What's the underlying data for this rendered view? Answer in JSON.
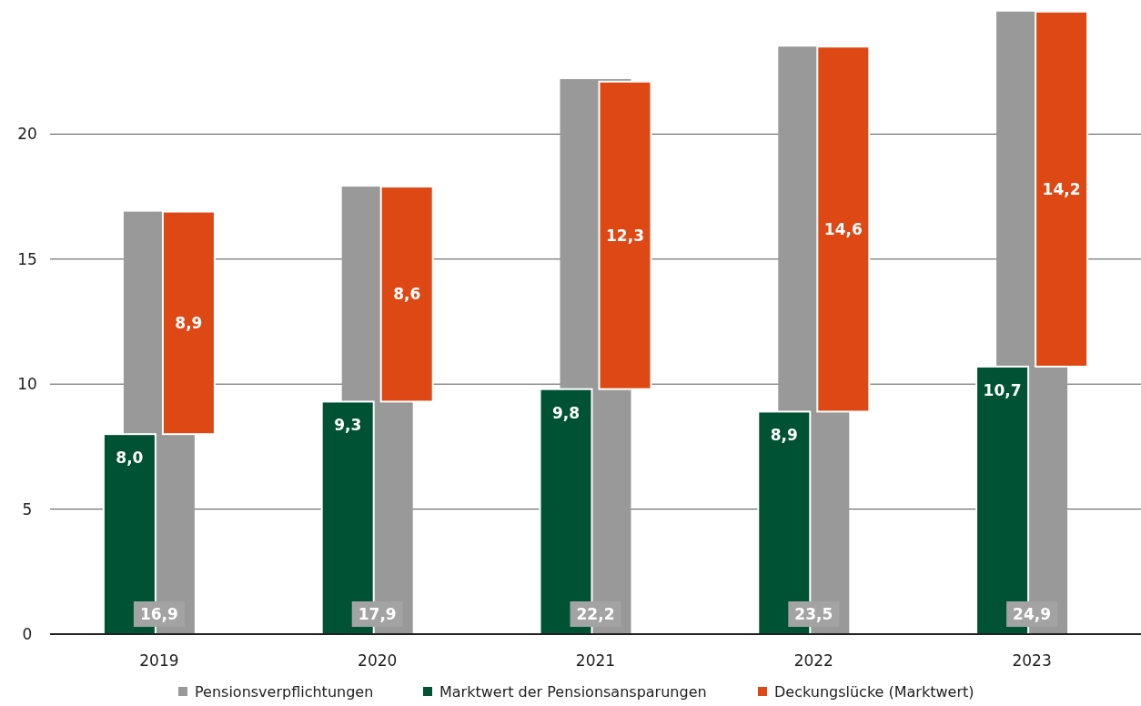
{
  "chart_data": {
    "type": "bar",
    "categories": [
      "2019",
      "2020",
      "2021",
      "2022",
      "2023"
    ],
    "series": [
      {
        "name": "Pensionsverpflichtungen",
        "color": "#999999",
        "values": [
          16.9,
          17.9,
          22.2,
          23.5,
          24.9
        ],
        "value_labels": [
          "16,9",
          "17,9",
          "22,2",
          "23,5",
          "24,9"
        ]
      },
      {
        "name": "Marktwert der Pensionsansparungen",
        "color": "#005234",
        "values": [
          8.0,
          9.3,
          9.8,
          8.9,
          10.7
        ],
        "value_labels": [
          "8,0",
          "9,3",
          "9,8",
          "8,9",
          "10,7"
        ]
      },
      {
        "name": "Deckungslücke (Marktwert)",
        "color": "#dd4814",
        "values": [
          8.9,
          8.6,
          12.3,
          14.6,
          14.2
        ],
        "base": [
          8.0,
          9.3,
          9.8,
          8.9,
          10.7
        ],
        "value_labels": [
          "8,9",
          "8,6",
          "12,3",
          "14,6",
          "14,2"
        ]
      }
    ],
    "ylim": [
      0,
      25
    ],
    "yticks": [
      0,
      5,
      10,
      15,
      20
    ],
    "grid": "y",
    "legend": "bottom"
  }
}
